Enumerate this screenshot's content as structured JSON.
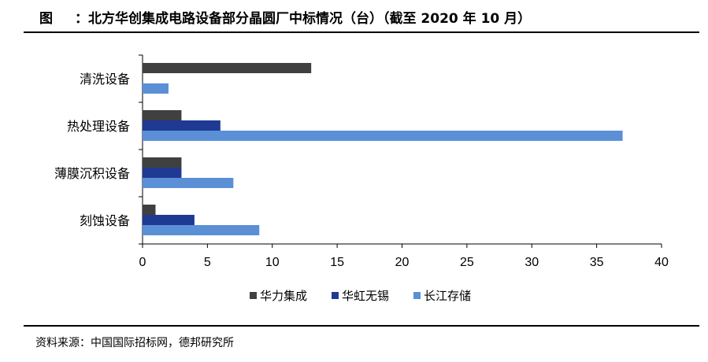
{
  "header": {
    "figure_label": "图",
    "title": "：北方华创集成电路设备部分晶圆厂中标情况（台）（截至 2020 年 10 月）"
  },
  "source": "资料来源：中国国际招标网，德邦研究所",
  "chart_data": {
    "type": "bar",
    "orientation": "horizontal",
    "categories": [
      "清洗设备",
      "热处理设备",
      "薄膜沉积设备",
      "刻蚀设备"
    ],
    "series": [
      {
        "name": "华力集成",
        "color": "#404040",
        "values": [
          13,
          3,
          3,
          1
        ]
      },
      {
        "name": "华虹无锡",
        "color": "#1f3a93",
        "values": [
          0,
          6,
          3,
          4
        ]
      },
      {
        "name": "长江存储",
        "color": "#5b8fd6",
        "values": [
          2,
          37,
          7,
          9
        ]
      }
    ],
    "xlim": [
      0,
      40
    ],
    "xticks": [
      0,
      5,
      10,
      15,
      20,
      25,
      30,
      35,
      40
    ],
    "grid": false,
    "legend_position": "bottom"
  }
}
